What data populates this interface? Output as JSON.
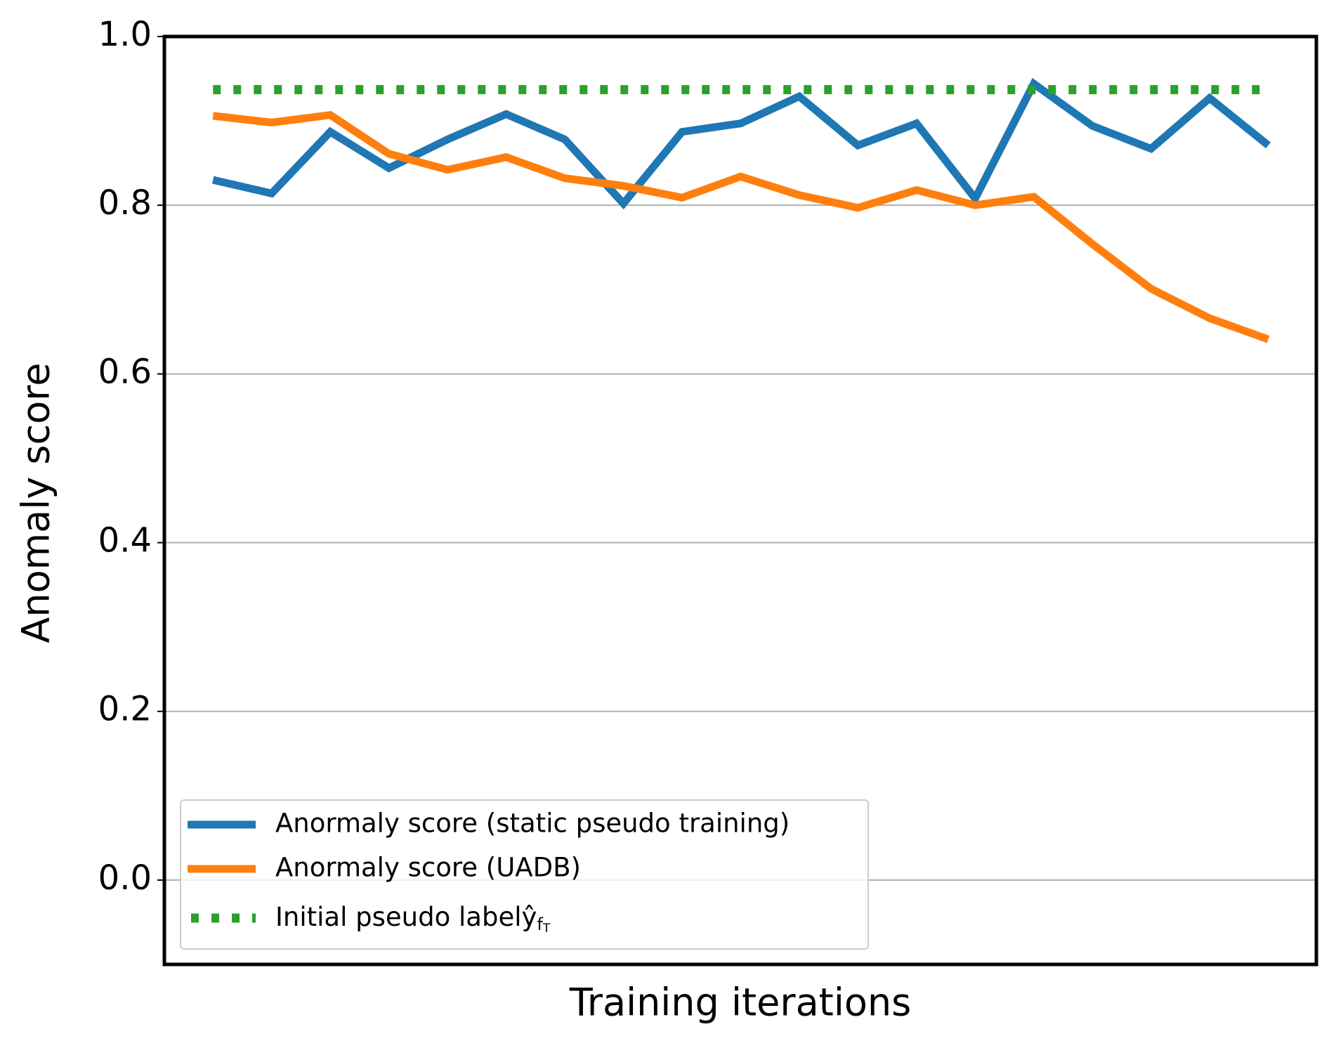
{
  "chart_data": {
    "type": "line",
    "xlabel": "Training iterations",
    "ylabel": "Anomaly score",
    "x": [
      0,
      1,
      2,
      3,
      4,
      5,
      6,
      7,
      8,
      9,
      10,
      11,
      12,
      13,
      14,
      15,
      16,
      17,
      18
    ],
    "xlim": [
      -0.83,
      18.82
    ],
    "ylim": [
      -0.1,
      1.0
    ],
    "yticks": [
      {
        "value": 0,
        "label": "0.0"
      },
      {
        "value": 0.2,
        "label": "0.2"
      },
      {
        "value": 0.4,
        "label": "0.4"
      },
      {
        "value": 0.6,
        "label": "0.6"
      },
      {
        "value": 0.8,
        "label": "0.8"
      },
      {
        "value": 1.0,
        "label": "1.0"
      }
    ],
    "grid": true,
    "legend": "lower left",
    "series": [
      {
        "name": "Anormaly score (static pseudo training)",
        "color": "#1f77b4",
        "style": "solid",
        "values": [
          0.83,
          0.814,
          0.887,
          0.844,
          0.878,
          0.908,
          0.878,
          0.802,
          0.887,
          0.897,
          0.929,
          0.871,
          0.897,
          0.808,
          0.944,
          0.894,
          0.867,
          0.927,
          0.871
        ]
      },
      {
        "name": "Anormaly score (UADB)",
        "color": "#ff7f0e",
        "style": "solid",
        "values": [
          0.906,
          0.898,
          0.907,
          0.861,
          0.842,
          0.857,
          0.832,
          0.823,
          0.809,
          0.834,
          0.812,
          0.797,
          0.818,
          0.8,
          0.81,
          0.754,
          0.701,
          0.666,
          0.641
        ]
      },
      {
        "name": "Initial pseudo labelŷfT",
        "color": "#2ca02c",
        "style": "dotted",
        "values": [
          0.937,
          0.937,
          0.937,
          0.937,
          0.937,
          0.937,
          0.937,
          0.937,
          0.937,
          0.937,
          0.937,
          0.937,
          0.937,
          0.937,
          0.937,
          0.937,
          0.937,
          0.937,
          0.937
        ]
      }
    ]
  }
}
